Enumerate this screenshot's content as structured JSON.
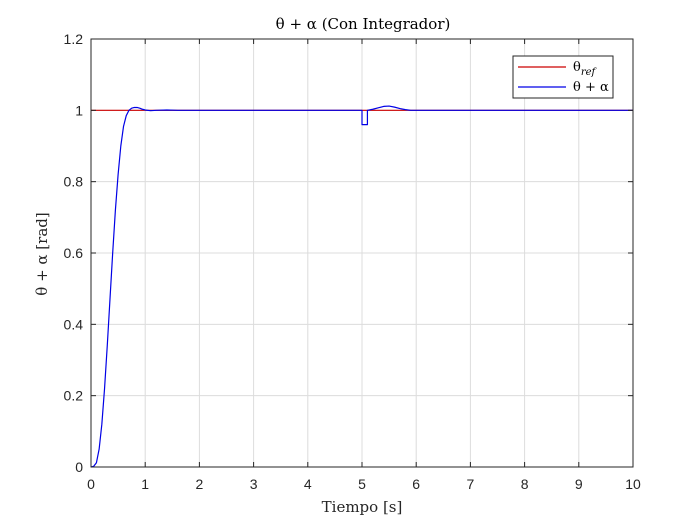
{
  "chart_data": {
    "type": "line",
    "title": "θ + α (Con Integrador)",
    "xlabel": "Tiempo [s]",
    "ylabel": "θ + α [rad]",
    "xlim": [
      0,
      10
    ],
    "ylim": [
      0,
      1.2
    ],
    "xticks": [
      0,
      1,
      2,
      3,
      4,
      5,
      6,
      7,
      8,
      9,
      10
    ],
    "yticks": [
      0,
      0.2,
      0.4,
      0.6,
      0.8,
      1,
      1.2
    ],
    "xtick_labels": [
      "0",
      "1",
      "2",
      "3",
      "4",
      "5",
      "6",
      "7",
      "8",
      "9",
      "10"
    ],
    "ytick_labels": [
      "0",
      "0.2",
      "0.4",
      "0.6",
      "0.8",
      "1",
      "1.2"
    ],
    "grid": true,
    "legend_position": "top-right",
    "series": [
      {
        "name": "θref",
        "legend_main": "θ",
        "legend_sub": "ref",
        "color": "#cc0000",
        "x": [
          0,
          10
        ],
        "y": [
          1,
          1
        ]
      },
      {
        "name": "θ + α",
        "legend_main": "θ + α",
        "color": "#0000e6",
        "x": [
          0,
          0.05,
          0.1,
          0.15,
          0.2,
          0.25,
          0.3,
          0.35,
          0.4,
          0.45,
          0.5,
          0.55,
          0.6,
          0.65,
          0.7,
          0.75,
          0.8,
          0.85,
          0.9,
          0.95,
          1.0,
          1.1,
          1.2,
          1.4,
          1.6,
          2.0,
          3.0,
          4.0,
          5.0,
          5.0,
          5.1,
          5.1,
          5.2,
          5.3,
          5.4,
          5.5,
          5.6,
          5.7,
          5.8,
          5.9,
          6.0,
          7.0,
          8.0,
          9.0,
          10.0
        ],
        "y": [
          0,
          0.002,
          0.012,
          0.05,
          0.12,
          0.22,
          0.34,
          0.47,
          0.6,
          0.72,
          0.82,
          0.9,
          0.955,
          0.985,
          1.0,
          1.006,
          1.008,
          1.008,
          1.006,
          1.003,
          1.001,
          0.999,
          1.0,
          1.001,
          1.0,
          1.0,
          1.0,
          1.0,
          1.0,
          0.96,
          0.96,
          1.0,
          1.003,
          1.007,
          1.011,
          1.012,
          1.009,
          1.005,
          1.002,
          1.0,
          1.0,
          1.0,
          1.0,
          1.0,
          1.0
        ]
      }
    ]
  },
  "colors": {
    "axes": "#262626",
    "grid": "#dcdcdc",
    "background": "#ffffff"
  }
}
